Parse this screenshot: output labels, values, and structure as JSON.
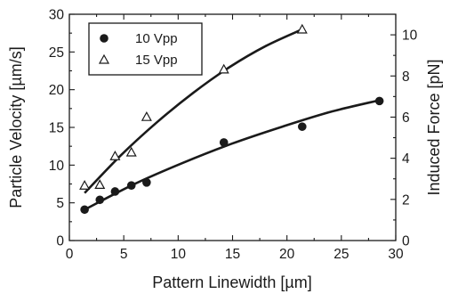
{
  "chart_data": {
    "type": "scatter",
    "xlabel": "Pattern Linewidth [µm]",
    "ylabel": "Particle Velocity [µm/s]",
    "y2label": "Induced Force [pN]",
    "xlim": [
      0,
      30
    ],
    "ylim": [
      0,
      30
    ],
    "y2lim": [
      0,
      11
    ],
    "xticks": [
      "0",
      "5",
      "10",
      "15",
      "20",
      "25",
      "30"
    ],
    "yticks": [
      "0",
      "5",
      "10",
      "15",
      "20",
      "25",
      "30"
    ],
    "y2ticks": [
      "0",
      "2",
      "4",
      "6",
      "8",
      "10"
    ],
    "legend_position": "top-left",
    "series": [
      {
        "name": "10 Vpp",
        "marker": "filled-circle",
        "x": [
          1.4,
          2.8,
          4.2,
          5.7,
          7.1,
          14.2,
          21.4,
          28.5
        ],
        "y": [
          4.1,
          5.4,
          6.5,
          7.3,
          7.7,
          13.0,
          15.1,
          18.5
        ],
        "fit": {
          "x_start": 1.4,
          "x_end": 28.5,
          "y": [
            4.1,
            7.45,
            10.3,
            12.85,
            15.05,
            17.05,
            18.6
          ]
        }
      },
      {
        "name": "15 Vpp",
        "marker": "open-triangle",
        "x": [
          1.4,
          2.8,
          4.2,
          5.7,
          7.1,
          14.2,
          21.4
        ],
        "y": [
          7.3,
          7.4,
          11.2,
          11.7,
          16.4,
          22.7,
          28.0
        ],
        "fit": {
          "x_start": 1.4,
          "x_end": 21.4,
          "y": [
            6.3,
            11.3,
            15.7,
            19.6,
            23.0,
            25.8,
            28.0
          ]
        }
      }
    ]
  }
}
